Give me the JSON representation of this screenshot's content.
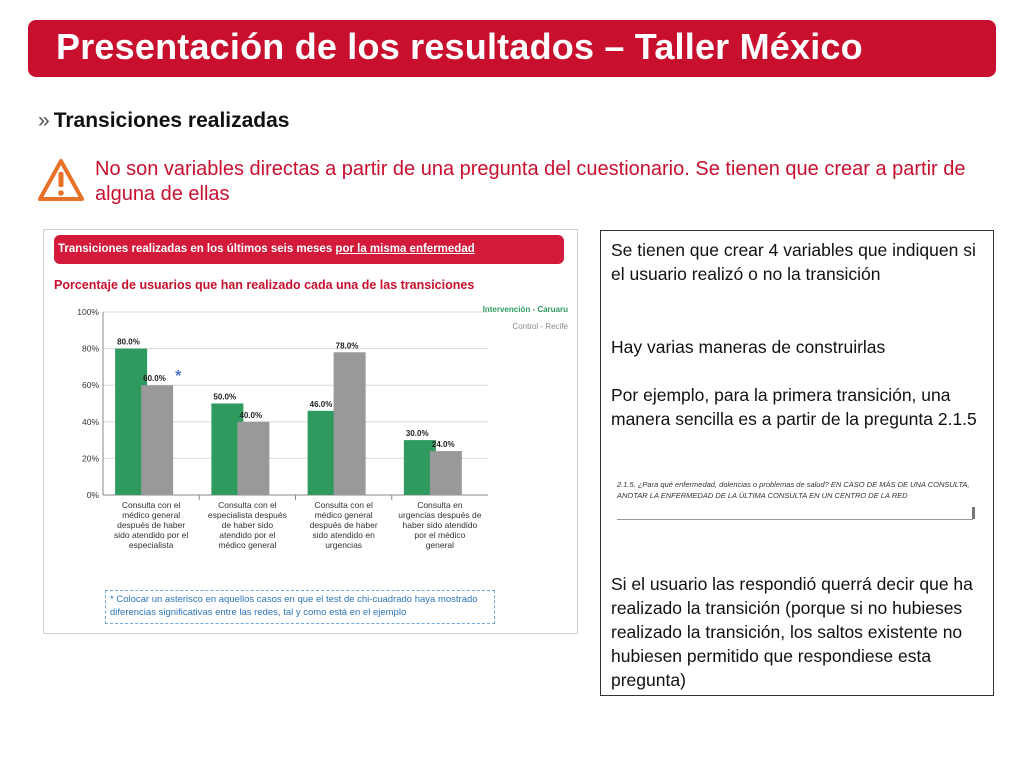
{
  "title": "Presentación de los resultados – Taller México",
  "section": {
    "bullet": "»",
    "heading": "Transiciones realizadas"
  },
  "warning": {
    "icon": "warning-triangle-icon",
    "text": "No son variables directas a partir de una pregunta del cuestionario. Se tienen que crear a partir de alguna de ellas"
  },
  "chart_panel": {
    "header_text": "Transiciones realizadas en los últimos seis meses ",
    "header_underlined": "por la misma enfermedad",
    "subtitle": "Porcentaje de usuarios que han realizado cada una de las transiciones",
    "significance_mark": "*",
    "footnote": "* Colocar un asterisco en aquellos casos en que el test de chi-cuadrado haya mostrado diferencias significativas entre las redes, tal y como está en el ejemplo"
  },
  "chart_data": {
    "type": "bar",
    "categories": [
      "Consulta con el médico general después de haber sido atendido por el especialista",
      "Consulta con el especialista después de haber sido atendido por el médico general",
      "Consulta con el médico general después de haber sido atendido en urgencias",
      "Consulta en urgencias después de haber sido atendido por el médico general"
    ],
    "series": [
      {
        "name": "Intervención - Caruaru",
        "values": [
          80.0,
          50.0,
          46.0,
          30.0
        ],
        "color": "#2e9a5e"
      },
      {
        "name": "Control - Recife",
        "values": [
          60.0,
          40.0,
          78.0,
          24.0
        ],
        "color": "#999999"
      }
    ],
    "value_labels": [
      [
        "80.0%",
        "50.0%",
        "46.0%",
        "30.0%"
      ],
      [
        "60.0%",
        "40.0%",
        "78.0%",
        "24.0%"
      ]
    ],
    "y_ticks": [
      "0%",
      "20%",
      "40%",
      "60%",
      "80%",
      "100%"
    ],
    "ylim": [
      0,
      100
    ],
    "grid": true,
    "legend_position": "top-right",
    "xlabel": "",
    "ylabel": ""
  },
  "text_panel": {
    "p1": "Se tienen que crear 4 variables que indiquen si el usuario realizó o no la transición",
    "p2": "Hay varias maneras de construirlas",
    "p3": "Por ejemplo, para la primera transición, una manera sencilla es a partir de la pregunta 2.1.5",
    "question_snippet": "2.1.5.  ¿Para qué enfermedad, dolencias o problemas de salud? EN CASO DE MÁS DE UNA CONSULTA, ANOTAR LA ENFERMEDAD DE LA ÚLTIMA CONSULTA EN UN CENTRO DE LA RED",
    "p4": "Si el usuario las respondió querrá decir que ha realizado la transición (porque si no hubieses realizado la transición, los saltos existente no hubiesen permitido que respondiese esta pregunta)"
  },
  "colors": {
    "brand_red": "#c8102e",
    "bar_green": "#2e9a5e",
    "bar_gray": "#999999",
    "legend_gray": "#888888"
  }
}
